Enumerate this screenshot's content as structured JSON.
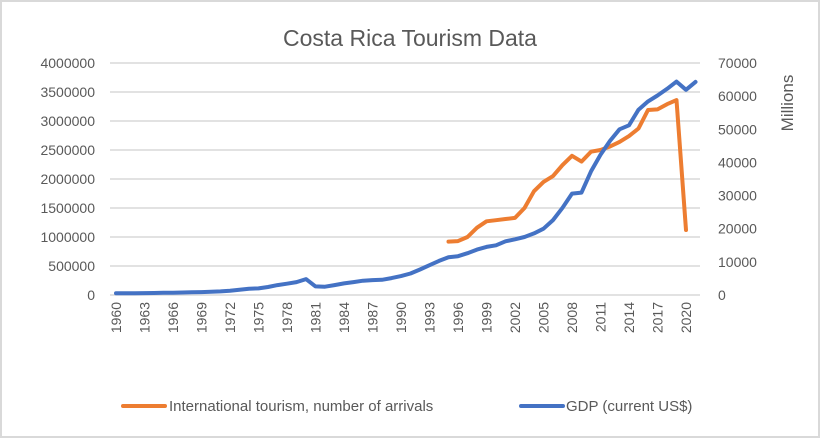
{
  "chart_data": {
    "type": "line",
    "title": "Costa Rica Tourism Data",
    "xlabel": "",
    "ylabel": "",
    "y2label": "Millions",
    "x": [
      1960,
      1961,
      1962,
      1963,
      1964,
      1965,
      1966,
      1967,
      1968,
      1969,
      1970,
      1971,
      1972,
      1973,
      1974,
      1975,
      1976,
      1977,
      1978,
      1979,
      1980,
      1981,
      1982,
      1983,
      1984,
      1985,
      1986,
      1987,
      1988,
      1989,
      1990,
      1991,
      1992,
      1993,
      1994,
      1995,
      1996,
      1997,
      1998,
      1999,
      2000,
      2001,
      2002,
      2003,
      2004,
      2005,
      2006,
      2007,
      2008,
      2009,
      2010,
      2011,
      2012,
      2013,
      2014,
      2015,
      2016,
      2017,
      2018,
      2019,
      2020,
      2021
    ],
    "x_tick_labels": [
      "1960",
      "1963",
      "1966",
      "1969",
      "1972",
      "1975",
      "1978",
      "1981",
      "1984",
      "1987",
      "1990",
      "1993",
      "1996",
      "1999",
      "2002",
      "2005",
      "2008",
      "2011",
      "2014",
      "2017",
      "2020"
    ],
    "ylim": [
      0,
      4000000
    ],
    "y_ticks": [
      "0",
      "500000",
      "1000000",
      "1500000",
      "2000000",
      "2500000",
      "3000000",
      "3500000",
      "4000000"
    ],
    "y2lim": [
      0,
      70000
    ],
    "y2_ticks": [
      "0",
      "10000",
      "20000",
      "30000",
      "40000",
      "50000",
      "60000",
      "70000"
    ],
    "grid": true,
    "legend_position": "bottom",
    "series": [
      {
        "name": "International tourism, number of arrivals",
        "axis": "left",
        "color": "#ed7d31",
        "values": [
          null,
          null,
          null,
          null,
          null,
          null,
          null,
          null,
          null,
          null,
          null,
          null,
          null,
          null,
          null,
          null,
          null,
          null,
          null,
          null,
          null,
          null,
          null,
          null,
          null,
          null,
          null,
          null,
          null,
          null,
          null,
          null,
          null,
          null,
          null,
          920000,
          930000,
          1000000,
          1160000,
          1270000,
          1290000,
          1310000,
          1330000,
          1500000,
          1790000,
          1950000,
          2050000,
          2240000,
          2400000,
          2300000,
          2470000,
          2500000,
          2560000,
          2640000,
          2740000,
          2870000,
          3190000,
          3200000,
          3290000,
          3360000,
          1120000,
          null
        ]
      },
      {
        "name": "GDP (current US$)",
        "axis": "right",
        "color": "#4472c4",
        "values": [
          500,
          510,
          530,
          560,
          600,
          650,
          700,
          750,
          800,
          860,
          980,
          1100,
          1300,
          1600,
          1900,
          2000,
          2400,
          3000,
          3400,
          3900,
          4800,
          2600,
          2500,
          3000,
          3500,
          3900,
          4300,
          4500,
          4600,
          5100,
          5700,
          6500,
          7700,
          9000,
          10300,
          11400,
          11700,
          12600,
          13700,
          14500,
          15000,
          16200,
          16800,
          17500,
          18600,
          20000,
          22600,
          26300,
          30600,
          30900,
          37300,
          42300,
          46500,
          50000,
          51200,
          55900,
          58400,
          60200,
          62200,
          64400,
          61900,
          64300
        ]
      }
    ]
  }
}
